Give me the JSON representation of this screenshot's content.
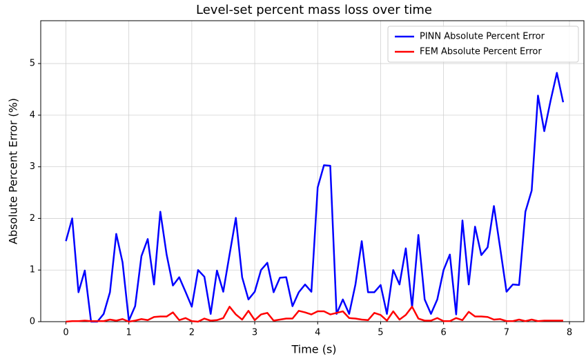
{
  "chart_data": {
    "type": "line",
    "title": "Level-set percent mass loss over time",
    "x_label": "Time (s)",
    "y_label": "Absolute Percent Error (%)",
    "x": [
      0,
      0.1,
      0.2,
      0.3,
      0.4,
      0.5,
      0.6,
      0.7,
      0.8,
      0.9,
      1,
      1.1,
      1.2,
      1.3,
      1.4,
      1.5,
      1.6,
      1.7,
      1.8,
      1.9,
      2,
      2.1,
      2.2,
      2.3,
      2.4,
      2.5,
      2.6,
      2.7,
      2.8,
      2.9,
      3,
      3.1,
      3.2,
      3.3,
      3.4,
      3.5,
      3.6,
      3.7,
      3.8,
      3.9,
      4,
      4.1,
      4.2,
      4.3,
      4.4,
      4.5,
      4.6,
      4.7,
      4.8,
      4.9,
      5,
      5.1,
      5.2,
      5.3,
      5.4,
      5.5,
      5.6,
      5.7,
      5.8,
      5.9,
      6,
      6.1,
      6.2,
      6.3,
      6.4,
      6.5,
      6.6,
      6.7,
      6.8,
      6.9,
      7,
      7.1,
      7.2,
      7.3,
      7.4,
      7.5,
      7.6,
      7.7,
      7.8,
      7.9
    ],
    "series": [
      {
        "name": "PINN Absolute Percent Error",
        "color": "#0000ff",
        "values": [
          1.56,
          2.0,
          0.57,
          0.99,
          0.0,
          0.0,
          0.15,
          0.57,
          1.7,
          1.15,
          0.02,
          0.3,
          1.27,
          1.6,
          0.72,
          2.13,
          1.3,
          0.7,
          0.86,
          0.58,
          0.29,
          1.0,
          0.87,
          0.15,
          0.99,
          0.58,
          1.3,
          2.01,
          0.86,
          0.43,
          0.58,
          1.0,
          1.14,
          0.57,
          0.85,
          0.86,
          0.3,
          0.57,
          0.72,
          0.58,
          2.6,
          3.03,
          3.02,
          0.15,
          0.43,
          0.15,
          0.72,
          1.56,
          0.57,
          0.57,
          0.71,
          0.15,
          1.0,
          0.72,
          1.42,
          0.28,
          1.68,
          0.43,
          0.15,
          0.43,
          1.0,
          1.3,
          0.14,
          1.96,
          0.72,
          1.84,
          1.29,
          1.44,
          2.24,
          1.42,
          0.58,
          0.72,
          0.71,
          2.13,
          2.54,
          4.38,
          3.69,
          4.28,
          4.82,
          4.25
        ]
      },
      {
        "name": "FEM Absolute Percent Error",
        "color": "#ff0000",
        "values": [
          0.0,
          0.01,
          0.01,
          0.02,
          0.01,
          0.01,
          0.01,
          0.04,
          0.02,
          0.05,
          0.0,
          0.02,
          0.05,
          0.03,
          0.09,
          0.1,
          0.1,
          0.18,
          0.03,
          0.07,
          0.01,
          0.0,
          0.06,
          0.02,
          0.03,
          0.07,
          0.29,
          0.14,
          0.04,
          0.21,
          0.03,
          0.14,
          0.17,
          0.02,
          0.04,
          0.06,
          0.06,
          0.21,
          0.18,
          0.14,
          0.2,
          0.2,
          0.14,
          0.17,
          0.2,
          0.07,
          0.06,
          0.04,
          0.03,
          0.17,
          0.13,
          0.02,
          0.2,
          0.04,
          0.13,
          0.29,
          0.06,
          0.02,
          0.02,
          0.07,
          0.01,
          0.01,
          0.07,
          0.03,
          0.19,
          0.1,
          0.1,
          0.09,
          0.04,
          0.05,
          0.01,
          0.01,
          0.04,
          0.01,
          0.04,
          0.01,
          0.02,
          0.02,
          0.02,
          0.02
        ]
      }
    ],
    "xlim": [
      -0.4,
      8.23
    ],
    "ylim": [
      0,
      5.83
    ],
    "xticks": [
      0,
      1,
      2,
      3,
      4,
      5,
      6,
      7,
      8
    ],
    "yticks": [
      0,
      1,
      2,
      3,
      4,
      5
    ],
    "grid": true,
    "legend": "upper right"
  }
}
